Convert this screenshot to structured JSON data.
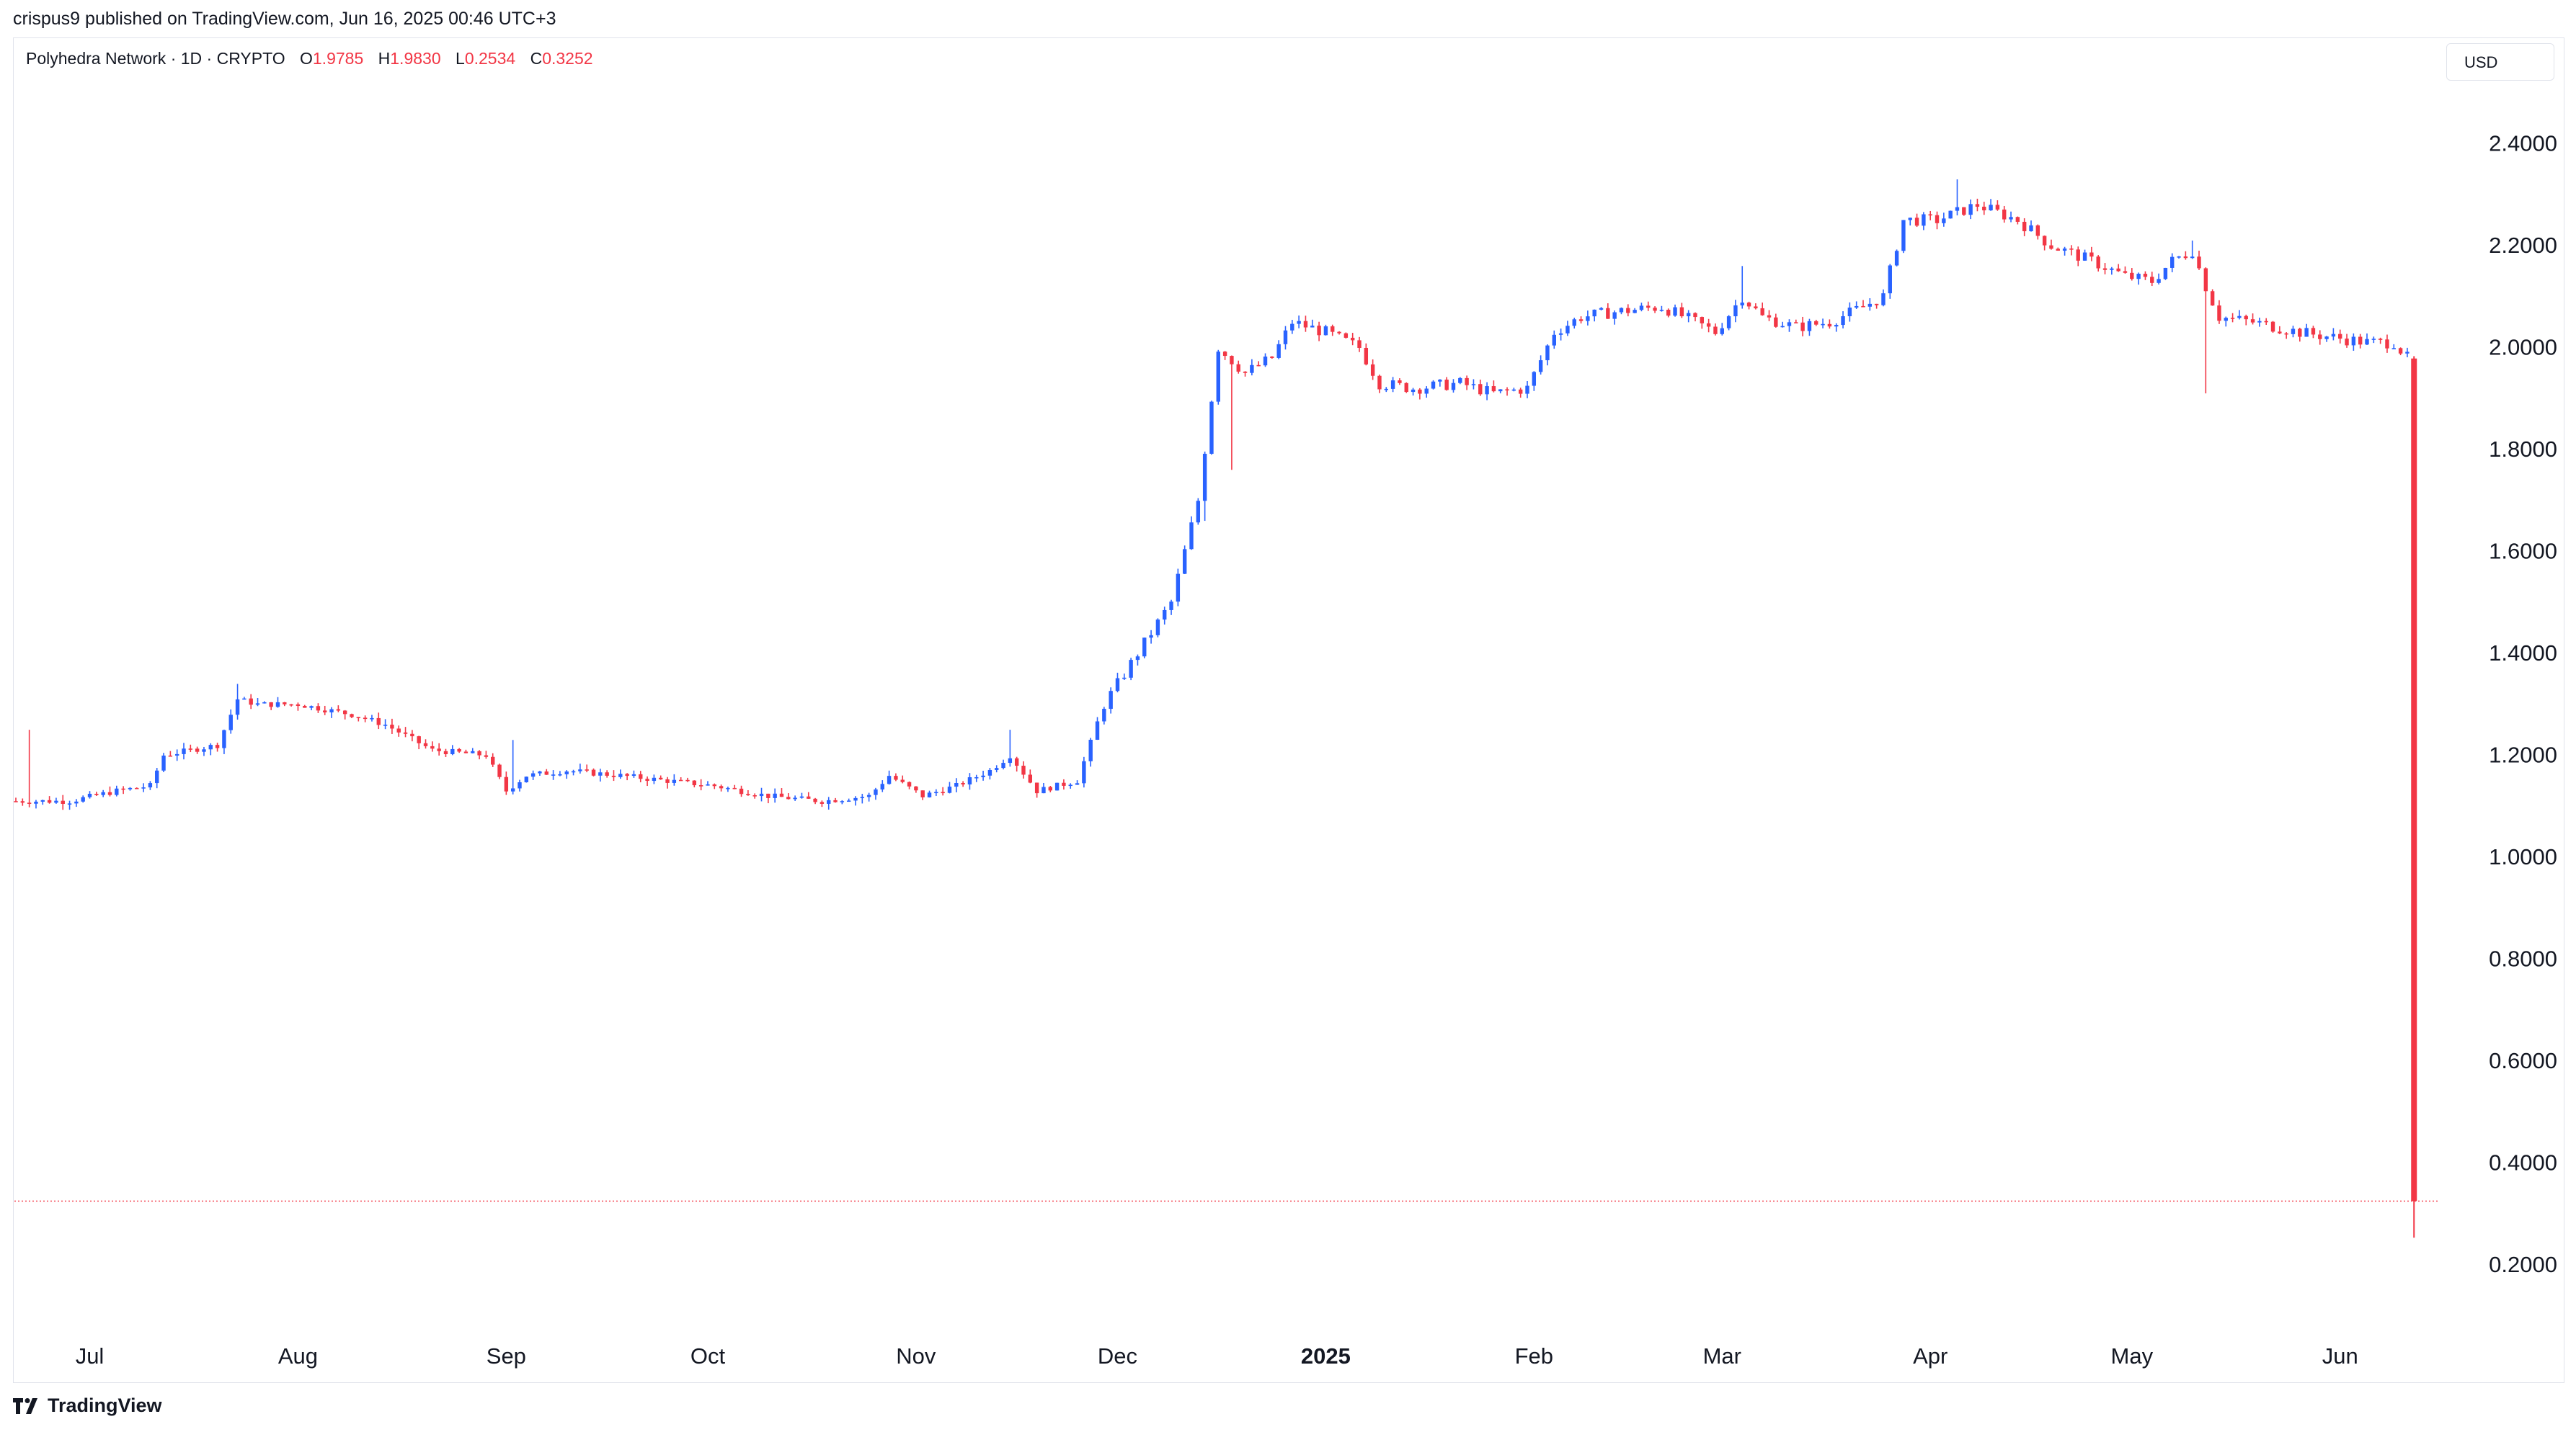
{
  "header": {
    "published_line": "crispus9 published on TradingView.com, Jun 16, 2025 00:46 UTC+3"
  },
  "legend": {
    "symbol": "Polyhedra Network · 1D · CRYPTO",
    "open_label": "O",
    "open_value": "1.9785",
    "high_label": "H",
    "high_value": "1.9830",
    "low_label": "L",
    "low_value": "0.2534",
    "close_label": "C",
    "close_value": "0.3252"
  },
  "currency_button": "USD",
  "footer": {
    "brand": "TradingView"
  },
  "colors": {
    "up": "#2962ff",
    "down": "#f23645",
    "text": "#131722",
    "border": "#e0e3eb"
  },
  "chart_data": {
    "type": "candlestick",
    "title": "Polyhedra Network · 1D · CRYPTO",
    "currency": "USD",
    "ylim": [
      0.08,
      2.55
    ],
    "y_ticks": [
      "0.2000",
      "0.4000",
      "0.6000",
      "0.8000",
      "1.0000",
      "1.2000",
      "1.4000",
      "1.6000",
      "1.8000",
      "2.0000",
      "2.2000",
      "2.4000"
    ],
    "x_ticks": [
      {
        "label": "Jul",
        "day": 11,
        "bold": false
      },
      {
        "label": "Aug",
        "day": 42,
        "bold": false
      },
      {
        "label": "Sep",
        "day": 73,
        "bold": false
      },
      {
        "label": "Oct",
        "day": 103,
        "bold": false
      },
      {
        "label": "Nov",
        "day": 134,
        "bold": false
      },
      {
        "label": "Dec",
        "day": 164,
        "bold": false
      },
      {
        "label": "2025",
        "day": 195,
        "bold": true
      },
      {
        "label": "Feb",
        "day": 226,
        "bold": false
      },
      {
        "label": "Mar",
        "day": 254,
        "bold": false
      },
      {
        "label": "Apr",
        "day": 285,
        "bold": false
      },
      {
        "label": "May",
        "day": 315,
        "bold": false
      },
      {
        "label": "Jun",
        "day": 346,
        "bold": false
      }
    ],
    "last_close": 0.3252,
    "close_path": [
      [
        0,
        1.11
      ],
      [
        8,
        1.11
      ],
      [
        15,
        1.13
      ],
      [
        20,
        1.14
      ],
      [
        22,
        1.2
      ],
      [
        30,
        1.22
      ],
      [
        33,
        1.31
      ],
      [
        36,
        1.3
      ],
      [
        42,
        1.3
      ],
      [
        50,
        1.28
      ],
      [
        55,
        1.26
      ],
      [
        62,
        1.21
      ],
      [
        70,
        1.2
      ],
      [
        73,
        1.13
      ],
      [
        76,
        1.16
      ],
      [
        82,
        1.17
      ],
      [
        90,
        1.16
      ],
      [
        97,
        1.15
      ],
      [
        104,
        1.14
      ],
      [
        112,
        1.12
      ],
      [
        120,
        1.11
      ],
      [
        127,
        1.12
      ],
      [
        130,
        1.16
      ],
      [
        135,
        1.12
      ],
      [
        140,
        1.14
      ],
      [
        145,
        1.17
      ],
      [
        148,
        1.2
      ],
      [
        152,
        1.13
      ],
      [
        158,
        1.15
      ],
      [
        162,
        1.3
      ],
      [
        167,
        1.4
      ],
      [
        172,
        1.5
      ],
      [
        176,
        1.7
      ],
      [
        179,
        2.0
      ],
      [
        183,
        1.95
      ],
      [
        187,
        1.98
      ],
      [
        190,
        2.05
      ],
      [
        195,
        2.03
      ],
      [
        200,
        2.0
      ],
      [
        203,
        1.93
      ],
      [
        208,
        1.92
      ],
      [
        215,
        1.93
      ],
      [
        220,
        1.91
      ],
      [
        225,
        1.92
      ],
      [
        229,
        2.03
      ],
      [
        233,
        2.06
      ],
      [
        238,
        2.07
      ],
      [
        245,
        2.08
      ],
      [
        250,
        2.05
      ],
      [
        253,
        2.03
      ],
      [
        257,
        2.1
      ],
      [
        260,
        2.06
      ],
      [
        265,
        2.04
      ],
      [
        270,
        2.05
      ],
      [
        275,
        2.08
      ],
      [
        278,
        2.1
      ],
      [
        281,
        2.25
      ],
      [
        286,
        2.25
      ],
      [
        292,
        2.28
      ],
      [
        298,
        2.25
      ],
      [
        303,
        2.2
      ],
      [
        309,
        2.17
      ],
      [
        314,
        2.14
      ],
      [
        318,
        2.13
      ],
      [
        321,
        2.17
      ],
      [
        324,
        2.19
      ],
      [
        326,
        2.12
      ],
      [
        328,
        2.06
      ],
      [
        333,
        2.05
      ],
      [
        340,
        2.03
      ],
      [
        345,
        2.02
      ],
      [
        350,
        2.01
      ],
      [
        354,
        2.01
      ],
      [
        356,
        1.98
      ]
    ],
    "spikes": [
      {
        "day": 2,
        "high": 1.25
      },
      {
        "day": 33,
        "high": 1.34
      },
      {
        "day": 74,
        "high": 1.23
      },
      {
        "day": 148,
        "high": 1.25
      },
      {
        "day": 177,
        "low": 1.66
      },
      {
        "day": 181,
        "low": 1.76
      },
      {
        "day": 257,
        "high": 2.16
      },
      {
        "day": 289,
        "high": 2.33
      },
      {
        "day": 324,
        "high": 2.21
      },
      {
        "day": 326,
        "low": 1.91
      }
    ],
    "final_candle": {
      "day": 357,
      "open": 1.9785,
      "high": 1.983,
      "low": 0.2534,
      "close": 0.3252
    }
  }
}
